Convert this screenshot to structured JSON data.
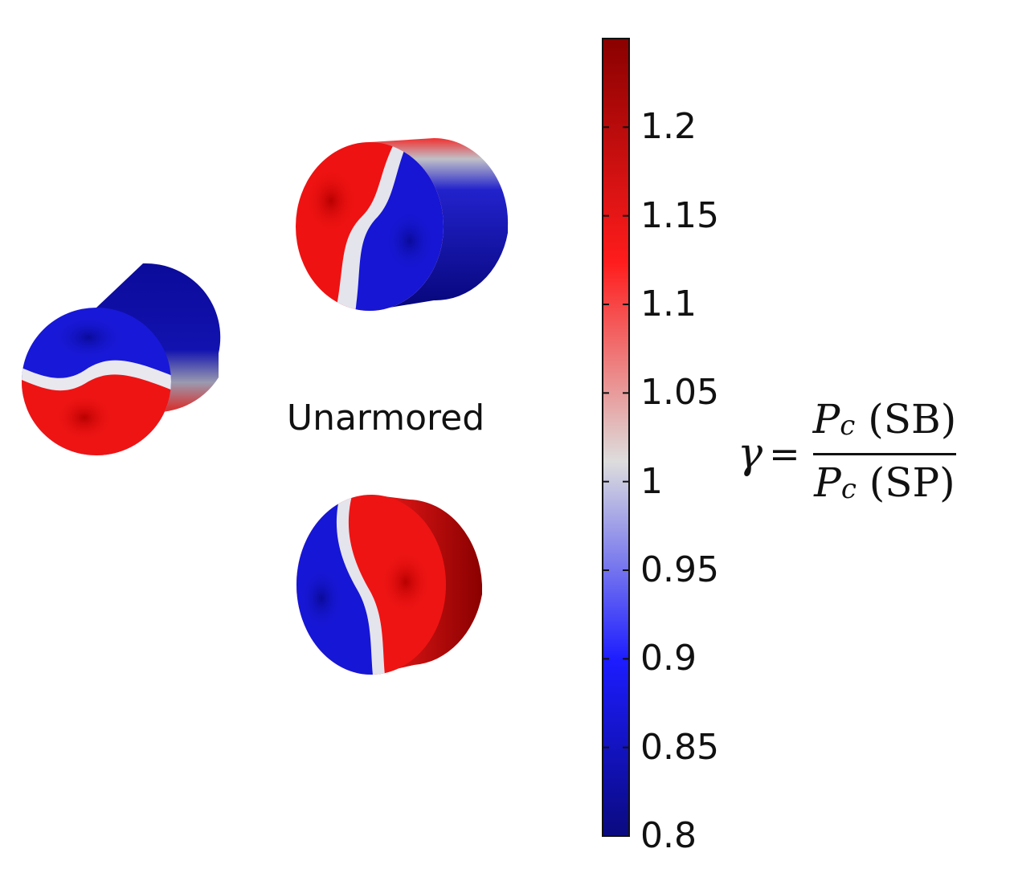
{
  "figure": {
    "center_label": "Unarmored",
    "colorbar": {
      "min": 0.8,
      "max": 1.25,
      "ticks": [
        {
          "value": 1.2,
          "label": "1.2"
        },
        {
          "value": 1.15,
          "label": "1.15"
        },
        {
          "value": 1.1,
          "label": "1.1"
        },
        {
          "value": 1.05,
          "label": "1.05"
        },
        {
          "value": 1.0,
          "label": "1"
        },
        {
          "value": 0.95,
          "label": "0.95"
        },
        {
          "value": 0.9,
          "label": "0.9"
        },
        {
          "value": 0.85,
          "label": "0.85"
        },
        {
          "value": 0.8,
          "label": "0.8"
        }
      ],
      "colors": {
        "low": "#0a0a80",
        "mid_low": "#1c1cff",
        "mid": "#dddddd",
        "mid_high": "#ff1c1c",
        "high": "#8a0000"
      }
    },
    "formula": {
      "symbol": "γ",
      "equals": "=",
      "numerator_var": "P",
      "numerator_sub": "c",
      "numerator_arg": "(SB)",
      "denominator_var": "P",
      "denominator_sub": "c",
      "denominator_arg": "(SP)"
    }
  }
}
